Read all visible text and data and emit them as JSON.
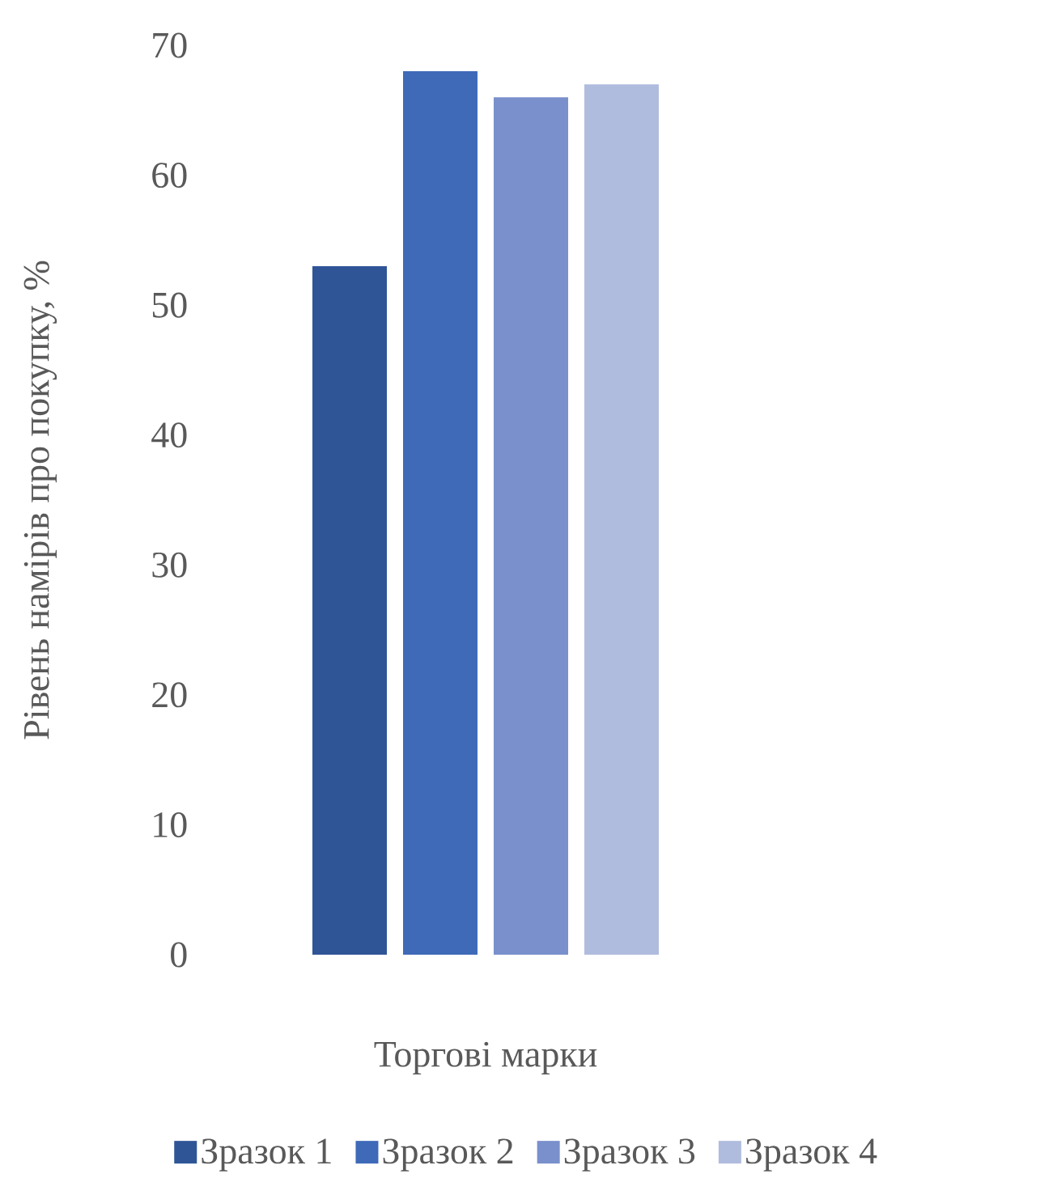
{
  "chart_data": {
    "type": "bar",
    "xlabel": "Торгові марки",
    "ylabel": "Рівень намірів про покупку, %",
    "categories": [
      null
    ],
    "series": [
      {
        "name": "Зразок 1",
        "color": "#2f5597",
        "values": [
          53
        ]
      },
      {
        "name": "Зразок 2",
        "color": "#3e6ab8",
        "values": [
          68
        ]
      },
      {
        "name": "Зразок 3",
        "color": "#7a90cc",
        "values": [
          66
        ]
      },
      {
        "name": "Зразок 4",
        "color": "#b0bcde",
        "values": [
          67
        ]
      }
    ],
    "ylim": [
      0,
      70
    ],
    "yticks": [
      0,
      10,
      20,
      30,
      40,
      50,
      60,
      70
    ],
    "legend": "bottom"
  }
}
